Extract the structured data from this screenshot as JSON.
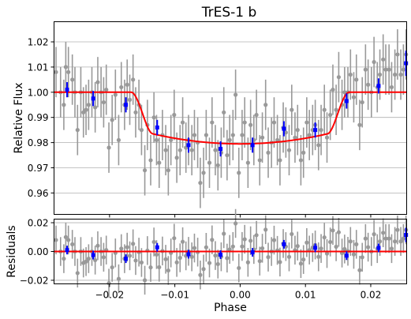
{
  "chart_data": [
    {
      "panel": "main",
      "type": "scatter",
      "title": "TrES-1 b",
      "xlabel": "",
      "ylabel": "Relative Flux",
      "xlim": [
        -0.0285,
        0.0255
      ],
      "ylim": [
        0.9515,
        1.028
      ],
      "yticks": [
        "0.96",
        "0.97",
        "0.98",
        "0.99",
        "1.00",
        "1.01",
        "1.02"
      ],
      "xticks": [
        "−0.02",
        "−0.01",
        "0.00",
        "0.01",
        "0.02"
      ],
      "grid": "horizontal",
      "series": [
        {
          "role": "raw",
          "color": "#999999",
          "x": [
            -0.0282,
            -0.0275,
            -0.027,
            -0.0267,
            -0.0263,
            -0.0257,
            -0.0253,
            -0.0249,
            -0.0244,
            -0.024,
            -0.0236,
            -0.0232,
            -0.0227,
            -0.0222,
            -0.0218,
            -0.0213,
            -0.0209,
            -0.0205,
            -0.0201,
            -0.0196,
            -0.0191,
            -0.0186,
            -0.0182,
            -0.0177,
            -0.0173,
            -0.0169,
            -0.0164,
            -0.016,
            -0.0155,
            -0.0151,
            -0.0146,
            -0.0142,
            -0.0137,
            -0.0132,
            -0.0128,
            -0.0124,
            -0.0119,
            -0.0114,
            -0.011,
            -0.0106,
            -0.0101,
            -0.0097,
            -0.0092,
            -0.0088,
            -0.0083,
            -0.0079,
            -0.0074,
            -0.007,
            -0.0065,
            -0.0061,
            -0.0056,
            -0.0052,
            -0.0047,
            -0.0043,
            -0.0038,
            -0.0034,
            -0.0029,
            -0.0025,
            -0.002,
            -0.0016,
            -0.0011,
            -0.0007,
            -0.0002,
            0.0003,
            0.0007,
            0.0012,
            0.0016,
            0.0021,
            0.0025,
            0.003,
            0.0034,
            0.0039,
            0.0043,
            0.0048,
            0.0052,
            0.0057,
            0.0061,
            0.0066,
            0.007,
            0.0075,
            0.0079,
            0.0084,
            0.0088,
            0.0093,
            0.0097,
            0.0102,
            0.0106,
            0.0111,
            0.0115,
            0.012,
            0.0124,
            0.0129,
            0.0133,
            0.0138,
            0.0142,
            0.0147,
            0.0151,
            0.0156,
            0.016,
            0.0165,
            0.0169,
            0.0174,
            0.0178,
            0.0183,
            0.0187,
            0.0192,
            0.0196,
            0.0201,
            0.0205,
            0.021,
            0.0214,
            0.0219,
            0.0223,
            0.0228,
            0.0232,
            0.0237,
            0.0241,
            0.0246,
            0.025,
            0.0254
          ],
          "y": [
            1.008,
            1.0,
            0.995,
            1.01,
            1.008,
            1.005,
            1.0,
            0.985,
            1.0,
            0.992,
            0.993,
            0.995,
            1.0,
            0.994,
            1.004,
            1.0,
            0.996,
            1.001,
            0.978,
            0.989,
            0.999,
            0.981,
            1.002,
            0.995,
            1.003,
            0.997,
            1.005,
            0.992,
            0.995,
            0.985,
            0.969,
            0.987,
            0.973,
            0.99,
            0.981,
            0.972,
            0.983,
            0.977,
            0.969,
            0.981,
            0.991,
            0.974,
            0.977,
            0.988,
            0.978,
            0.981,
            0.977,
            0.983,
            0.98,
            0.964,
            0.968,
            0.983,
            0.972,
            0.988,
            0.977,
            0.971,
            0.976,
            0.992,
            0.975,
            0.981,
            0.983,
            0.999,
            0.968,
            0.983,
            0.988,
            0.972,
            0.987,
            0.981,
            0.991,
            0.973,
            0.982,
            0.995,
            0.976,
            0.98,
            0.988,
            0.981,
            0.973,
            0.986,
            0.984,
            0.977,
            0.993,
            0.982,
            0.985,
            0.973,
            0.976,
            0.988,
            0.983,
            0.985,
            0.987,
            0.979,
            0.985,
            0.993,
            0.982,
            0.991,
            1.001,
            0.993,
            1.006,
            0.995,
            1.0,
            1.0,
            1.007,
            0.998,
            1.005,
            0.987,
            0.996,
            1.009,
            1.003,
            1.0,
            1.012,
            1.002,
            1.007,
            1.013,
            1.009,
            1.009,
            1.002,
            1.007,
            1.015,
            1.007,
            1.009,
            1.015
          ],
          "yerr": 0.01
        },
        {
          "role": "binned",
          "color": "#0000ff",
          "x": [
            -0.0265,
            -0.0225,
            -0.0175,
            -0.0127,
            -0.0079,
            -0.003,
            0.0019,
            0.0067,
            0.0115,
            0.0163,
            0.0212,
            0.0254
          ],
          "y": [
            1.001,
            0.9975,
            0.995,
            0.986,
            0.979,
            0.9775,
            0.979,
            0.9855,
            0.985,
            0.9965,
            1.0025,
            1.0115
          ],
          "yerr": [
            0.003,
            0.003,
            0.003,
            0.003,
            0.003,
            0.003,
            0.003,
            0.003,
            0.003,
            0.003,
            0.003,
            0.005
          ]
        },
        {
          "role": "model",
          "type": "line",
          "color": "#ff0000",
          "depth": 0.0205,
          "t14": 0.0334,
          "t23": 0.0268
        }
      ]
    },
    {
      "panel": "residuals",
      "type": "scatter",
      "xlabel": "Phase",
      "ylabel": "Residuals",
      "xlim": [
        -0.0285,
        0.0255
      ],
      "ylim": [
        -0.0225,
        0.0225
      ],
      "yticks": [
        "−0.02",
        "0.00",
        "0.02"
      ],
      "xticks": [
        "−0.02",
        "−0.01",
        "0.00",
        "0.01",
        "0.02"
      ],
      "grid": "horizontal",
      "series": [
        {
          "role": "raw",
          "color": "#999999",
          "from": "main.raw_minus_model"
        },
        {
          "role": "binned",
          "color": "#0000ff",
          "from": "main.binned_minus_model"
        },
        {
          "role": "zero-line",
          "type": "line",
          "color": "#ff0000",
          "y": 0
        }
      ]
    }
  ]
}
